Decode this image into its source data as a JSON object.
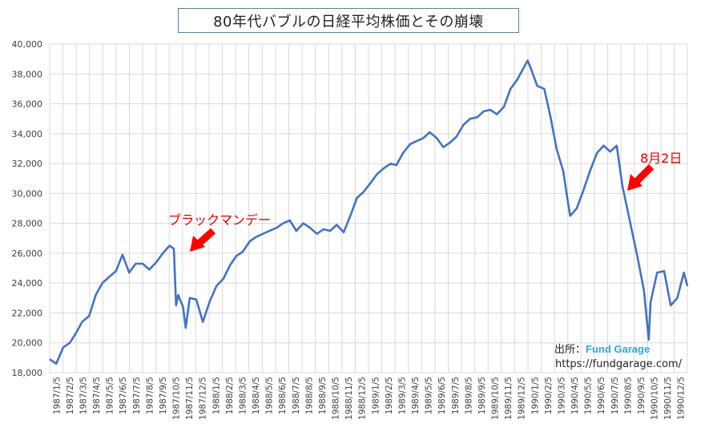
{
  "chart_data": {
    "type": "line",
    "title": "80年代バブルの日経平均株価とその崩壊",
    "xlabel": "",
    "ylabel": "",
    "ylim": [
      18000,
      40000
    ],
    "yticks": [
      18000,
      20000,
      22000,
      24000,
      26000,
      28000,
      30000,
      32000,
      34000,
      36000,
      38000,
      40000
    ],
    "ytick_labels": [
      "18,000",
      "20,000",
      "22,000",
      "24,000",
      "26,000",
      "28,000",
      "30,000",
      "32,000",
      "34,000",
      "36,000",
      "38,000",
      "40,000"
    ],
    "xtick_labels": [
      "1987/1/5",
      "1987/2/5",
      "1987/3/5",
      "1987/4/5",
      "1987/5/5",
      "1987/6/5",
      "1987/7/5",
      "1987/8/5",
      "1987/9/5",
      "1987/10/5",
      "1987/11/5",
      "1987/12/5",
      "1988/1/5",
      "1988/2/5",
      "1988/3/5",
      "1988/4/5",
      "1988/5/5",
      "1988/6/5",
      "1988/7/5",
      "1988/8/5",
      "1988/9/5",
      "1988/10/5",
      "1988/11/5",
      "1988/12/5",
      "1989/1/5",
      "1989/2/5",
      "1989/3/5",
      "1989/4/5",
      "1989/5/5",
      "1989/6/5",
      "1989/7/5",
      "1989/8/5",
      "1989/9/5",
      "1989/10/5",
      "1989/11/5",
      "1989/12/5",
      "1990/1/5",
      "1990/2/5",
      "1990/3/5",
      "1990/4/5",
      "1990/5/5",
      "1990/6/5",
      "1990/7/5",
      "1990/8/5",
      "1990/9/5",
      "1990/10/5",
      "1990/11/5",
      "1990/12/5"
    ],
    "grid": true,
    "legend": "none",
    "line_color": "#4472c4",
    "series": [
      {
        "x": [
          "1987/1/5",
          "1987/1/20",
          "1987/2/5",
          "1987/2/20",
          "1987/3/5",
          "1987/3/20",
          "1987/4/5",
          "1987/4/20",
          "1987/5/5",
          "1987/5/20",
          "1987/6/5",
          "1987/6/20",
          "1987/7/5",
          "1987/7/20",
          "1987/8/5",
          "1987/8/20",
          "1987/9/5",
          "1987/9/20",
          "1987/10/5",
          "1987/10/15",
          "1987/10/20",
          "1987/10/25",
          "1987/11/5",
          "1987/11/11",
          "1987/11/20",
          "1987/12/5",
          "1987/12/20",
          "1988/1/5",
          "1988/1/20",
          "1988/2/5",
          "1988/2/20",
          "1988/3/5",
          "1988/3/20",
          "1988/4/5",
          "1988/4/20",
          "1988/5/5",
          "1988/5/20",
          "1988/6/5",
          "1988/6/20",
          "1988/7/5",
          "1988/7/20",
          "1988/8/5",
          "1988/8/20",
          "1988/9/5",
          "1988/9/20",
          "1988/10/5",
          "1988/10/20",
          "1988/11/5",
          "1988/11/20",
          "1988/12/5",
          "1988/12/20",
          "1989/1/5",
          "1989/1/20",
          "1989/2/5",
          "1989/2/20",
          "1989/3/5",
          "1989/3/20",
          "1989/4/5",
          "1989/4/20",
          "1989/5/5",
          "1989/5/20",
          "1989/6/5",
          "1989/6/20",
          "1989/7/5",
          "1989/7/20",
          "1989/8/5",
          "1989/8/20",
          "1989/9/5",
          "1989/9/20",
          "1989/10/5",
          "1989/10/20",
          "1989/11/5",
          "1989/11/20",
          "1989/12/5",
          "1989/12/29",
          "1990/1/5",
          "1990/1/20",
          "1990/2/5",
          "1990/2/20",
          "1990/3/5",
          "1990/3/20",
          "1990/4/2",
          "1990/4/5",
          "1990/4/20",
          "1990/5/5",
          "1990/5/20",
          "1990/6/5",
          "1990/6/20",
          "1990/7/5",
          "1990/7/20",
          "1990/8/2",
          "1990/8/20",
          "1990/9/5",
          "1990/9/20",
          "1990/10/1",
          "1990/10/5",
          "1990/10/20",
          "1990/11/5",
          "1990/11/20",
          "1990/12/5",
          "1990/12/20",
          "1990/12/28"
        ],
        "values": [
          18900,
          18600,
          19700,
          20000,
          20600,
          21400,
          21800,
          23200,
          24000,
          24400,
          24800,
          25900,
          24700,
          25300,
          25300,
          24900,
          25400,
          26000,
          26500,
          26300,
          22500,
          23200,
          22400,
          21000,
          23000,
          22900,
          21400,
          22800,
          23800,
          24300,
          25200,
          25800,
          26100,
          26800,
          27100,
          27300,
          27500,
          27700,
          28000,
          28200,
          27500,
          28000,
          27700,
          27300,
          27600,
          27500,
          27900,
          27400,
          28500,
          29700,
          30100,
          30700,
          31300,
          31700,
          32000,
          31900,
          32700,
          33300,
          33500,
          33700,
          34100,
          33700,
          33100,
          33400,
          33800,
          34600,
          35000,
          35100,
          35500,
          35600,
          35300,
          35800,
          37000,
          37600,
          38900,
          38400,
          37200,
          37000,
          35000,
          33000,
          31500,
          29000,
          28500,
          29000,
          30200,
          31500,
          32700,
          33200,
          32800,
          33200,
          30500,
          28000,
          25800,
          23500,
          20200,
          22700,
          24700,
          24800,
          22500,
          23000,
          24700,
          23800
        ]
      }
    ],
    "annotations": [
      {
        "text": "ブラックマンデー",
        "x": "1987/10/20"
      },
      {
        "text": "8月2日",
        "x": "1990/8/2"
      }
    ]
  },
  "source": {
    "label": "出所：",
    "brand": "Fund Garage",
    "url": "https://fundgarage.com/"
  }
}
